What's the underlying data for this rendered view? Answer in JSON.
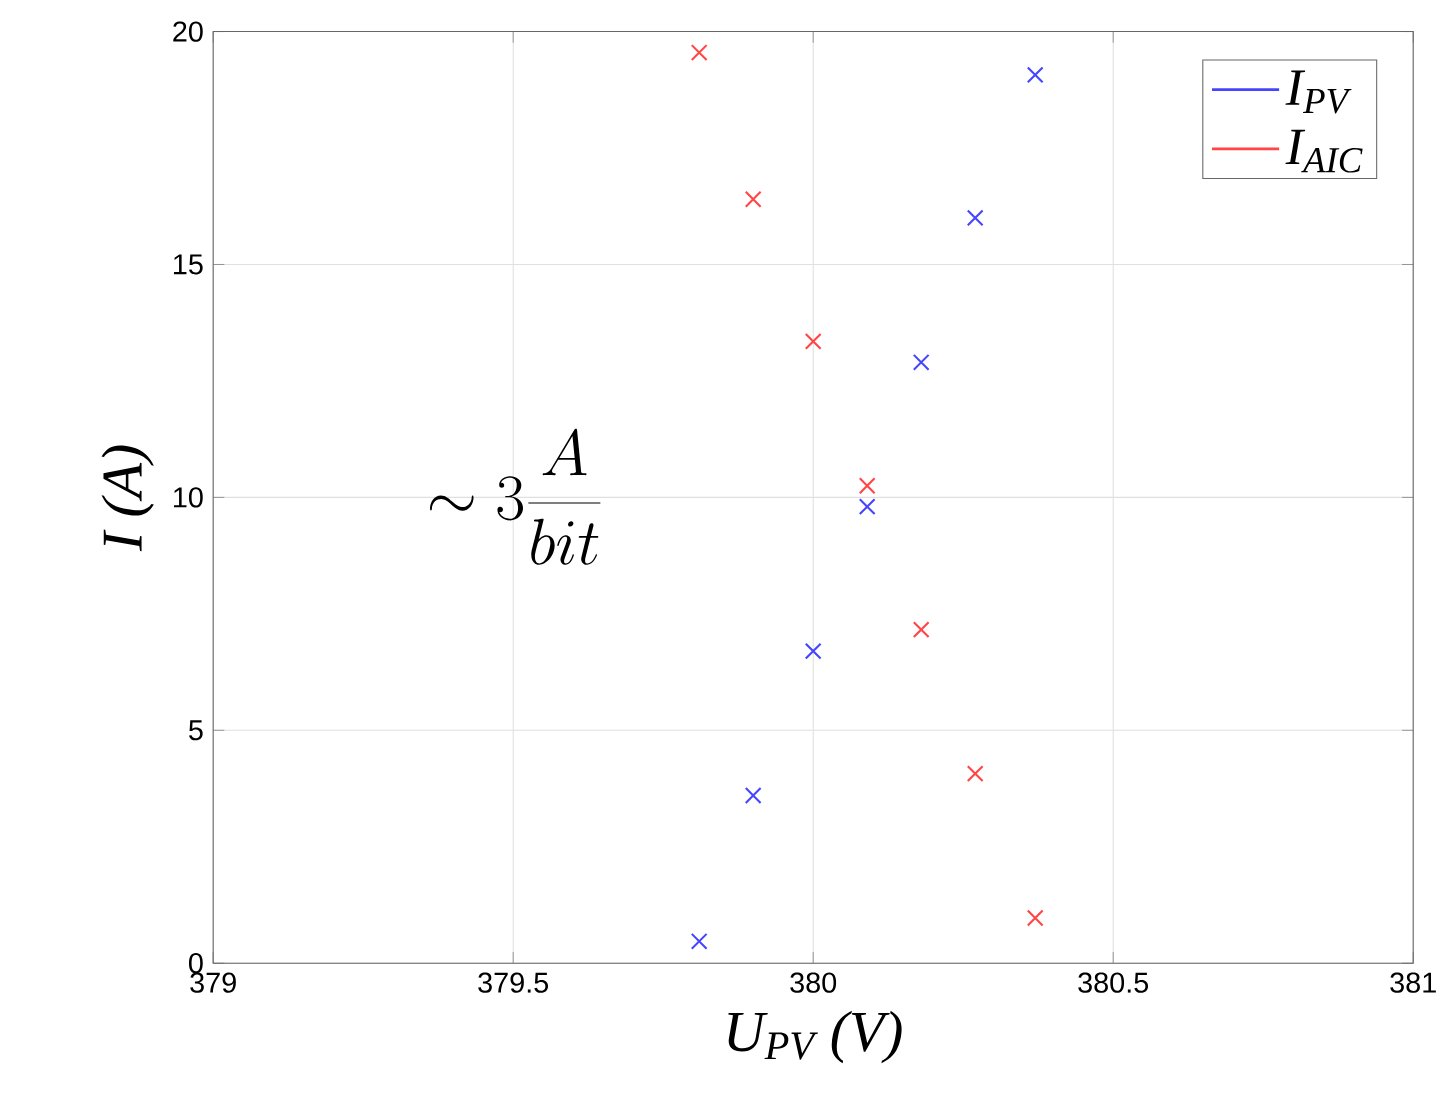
{
  "chart_data": {
    "type": "scatter",
    "xlabel": "U$_{PV}$ (V)",
    "ylabel": "I (A)",
    "series": [
      {
        "name": "I$_{PV}$",
        "color": "#4545ff",
        "x": [
          379.81,
          379.9,
          380.0,
          380.09,
          380.18,
          380.27,
          380.37
        ],
        "values": [
          0.47,
          3.6,
          6.7,
          9.8,
          12.9,
          16.0,
          19.07
        ]
      },
      {
        "name": "I$_{AIC}$",
        "color": "#ff4545",
        "x": [
          379.81,
          379.9,
          380.0,
          380.09,
          380.18,
          380.27,
          380.37
        ],
        "values": [
          19.55,
          16.4,
          13.35,
          10.25,
          7.16,
          4.07,
          0.97
        ]
      }
    ],
    "annotations": [
      "\\sim 3\\frac{A}{bit}"
    ],
    "xlim": [
      379,
      381
    ],
    "ylim": [
      0,
      20
    ],
    "xticks": [
      379,
      379.5,
      380,
      380.5,
      381
    ],
    "yticks": [
      0,
      5,
      10,
      15,
      20
    ],
    "grid": true,
    "legend": "top right",
    "marker": "cross"
  }
}
